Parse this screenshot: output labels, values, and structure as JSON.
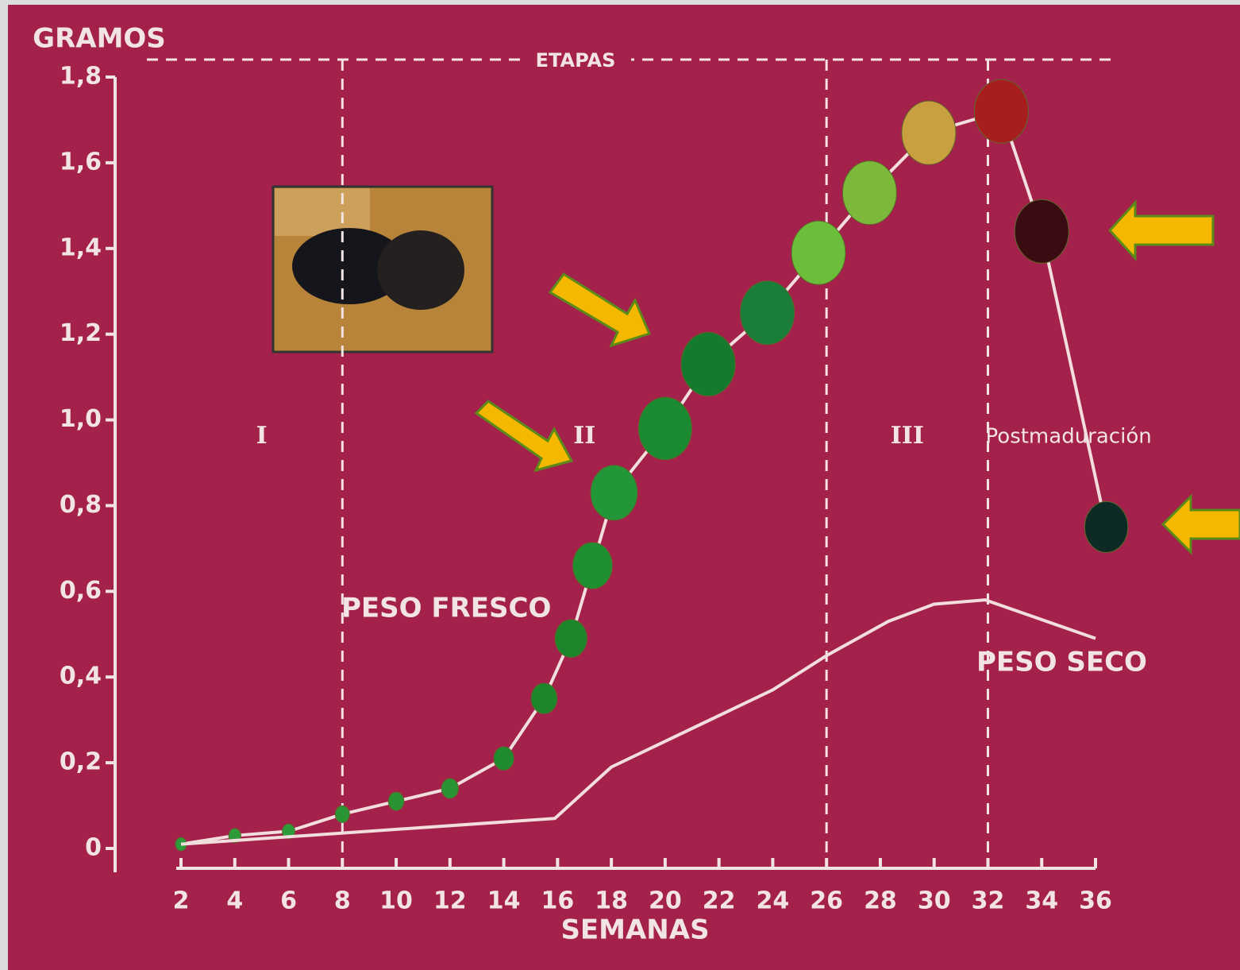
{
  "chart_data": {
    "type": "line",
    "y_axis_label": "GRAMOS",
    "x_axis_label": "SEMANAS",
    "stage_title": "ETAPAS",
    "stage_boundaries": [
      8,
      26,
      32
    ],
    "stage_labels": [
      "I",
      "II",
      "III",
      "Postmaduración"
    ],
    "xlim": [
      2,
      36
    ],
    "xticks": [
      2,
      4,
      6,
      8,
      10,
      12,
      14,
      16,
      18,
      20,
      22,
      24,
      26,
      28,
      30,
      32,
      34,
      36
    ],
    "ylim": [
      0,
      1.8
    ],
    "yticks": [
      0,
      {
        "value": 0.2,
        "label": "0,2"
      },
      {
        "value": 0.4,
        "label": "0,4"
      },
      {
        "value": 0.6,
        "label": "0,6"
      },
      {
        "value": 0.8,
        "label": "0,8"
      },
      {
        "value": 1.0,
        "label": "1,0"
      },
      {
        "value": 1.2,
        "label": "1,2"
      },
      {
        "value": 1.4,
        "label": "1,4"
      },
      {
        "value": 1.6,
        "label": "1,6"
      },
      {
        "value": 1.8,
        "label": "1,8"
      }
    ],
    "series": [
      {
        "name": "PESO FRESCO",
        "color": "#f3dede",
        "x": [
          2,
          4,
          6,
          8,
          10,
          12,
          14,
          15.5,
          16.5,
          17.3,
          18.1,
          20,
          21.6,
          23.8,
          25.7,
          27.6,
          29.8,
          32.5,
          34,
          36.4
        ],
        "values": [
          0.01,
          0.03,
          0.04,
          0.08,
          0.11,
          0.14,
          0.21,
          0.35,
          0.49,
          0.66,
          0.83,
          0.98,
          1.13,
          1.25,
          1.39,
          1.53,
          1.67,
          1.72,
          1.44,
          0.75
        ],
        "marker_colors": [
          "#2f9a3a",
          "#2f9a3a",
          "#2f9a3a",
          "#2a9435",
          "#2a9435",
          "#2a9435",
          "#1f8a30",
          "#1d862d",
          "#1d862d",
          "#1f8f32",
          "#23963a",
          "#1c8a30",
          "#157a2e",
          "#1a7d3a",
          "#6cbd3a",
          "#7cb83a",
          "#c9a040",
          "#a81e1e",
          "#3a0c12",
          "#0e2a24"
        ]
      },
      {
        "name": "PESO SECO",
        "color": "#f3dede",
        "x": [
          2,
          15.9,
          18,
          24,
          26,
          28.3,
          30,
          31.9,
          36
        ],
        "values": [
          0.01,
          0.07,
          0.19,
          0.37,
          0.45,
          0.53,
          0.57,
          0.58,
          0.49
        ]
      }
    ]
  }
}
